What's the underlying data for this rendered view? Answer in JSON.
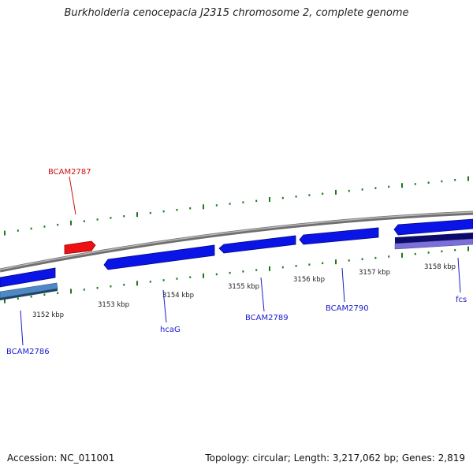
{
  "title": "Burkholderia cenocepacia J2315 chromosome 2, complete genome",
  "footer": {
    "accession": "Accession: NC_011001",
    "summary": "Topology: circular; Length: 3,217,062 bp; Genes: 2,819"
  },
  "colors": {
    "backbone": "#808080",
    "gene_forward": "#0a14e6",
    "gene_highlight": "#ee1111",
    "gene_reverse_light": "#4f88c4",
    "gene_reverse_dark": "#0b0b6b",
    "gene_reverse_violet": "#7a70d8",
    "ticks": "#1a7a1a",
    "label_blue": "#1a1acc",
    "label_red": "#cc1111"
  },
  "scale_labels": [
    "3152 kbp",
    "3153 kbp",
    "3154 kbp",
    "3155 kbp",
    "3156 kbp",
    "3157 kbp",
    "3158 kbp"
  ],
  "gene_labels": [
    {
      "id": "BCAM2787",
      "color": "red"
    },
    {
      "id": "BCAM2786",
      "color": "blue"
    },
    {
      "id": "hcaG",
      "color": "blue"
    },
    {
      "id": "BCAM2789",
      "color": "blue"
    },
    {
      "id": "BCAM2790",
      "color": "blue"
    },
    {
      "id": "fcs",
      "color": "blue"
    }
  ]
}
